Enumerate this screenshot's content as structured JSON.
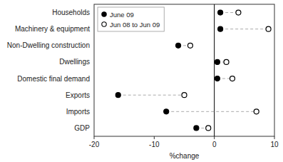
{
  "chart_data": {
    "type": "dot",
    "categories": [
      "Households",
      "Machinery & equipment",
      "Non-Dwelling construction",
      "Dwellings",
      "Domestic final demand",
      "Exports",
      "Imports",
      "GDP"
    ],
    "series": [
      {
        "name": "June 09",
        "color": "#000000",
        "marker": "circle",
        "values": [
          1.0,
          1.0,
          -6.0,
          0.5,
          0.5,
          -16.0,
          -8.0,
          -3.0
        ]
      },
      {
        "name": "Jun 08 to Jun 09",
        "color": "#000000",
        "marker": "open-circle",
        "values": [
          4.0,
          9.0,
          -4.0,
          2.0,
          3.0,
          -5.0,
          7.0,
          -1.0
        ]
      }
    ],
    "xlim": [
      -20,
      10
    ],
    "xticks": [
      -20,
      -10,
      0,
      10
    ],
    "xlabel": "%change",
    "reference_line": 0,
    "line_style": "dashed",
    "legend": "upper left",
    "grid": false
  }
}
